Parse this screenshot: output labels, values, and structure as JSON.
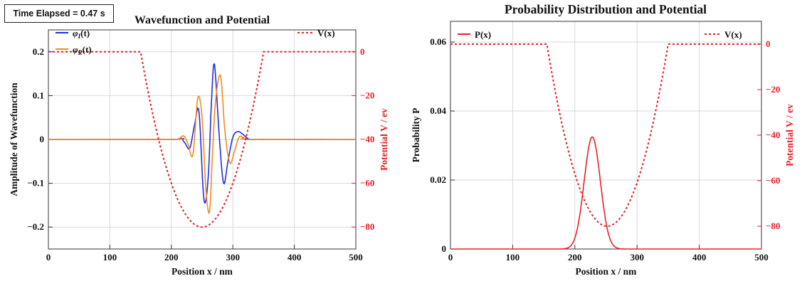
{
  "time_label": "Time Elapsed = 0.47 s",
  "colors": {
    "phi_i": "#1f2fe0",
    "phi_r": "#f28a21",
    "potential": "#e8202a",
    "probability": "#e8202a",
    "grid": "#d9d9d9"
  },
  "chart_data": [
    {
      "type": "line",
      "title": "Wavefunction and Potential",
      "xlabel": "Position x / nm",
      "ylabel": "Amplitude of Wavefunction",
      "ylabel_right": "Potential V / ev",
      "xlim": [
        0,
        500
      ],
      "ylim": [
        -0.25,
        0.25
      ],
      "ylim_right": [
        -90,
        10
      ],
      "xticks": [
        "0",
        "100",
        "200",
        "300",
        "400",
        "500"
      ],
      "yticks": [
        "0.2",
        "0.1",
        "0",
        "−0.1",
        "−0.2"
      ],
      "yticks_right": [
        "0",
        "−20",
        "−40",
        "−60",
        "−80"
      ],
      "grid": true,
      "legend_left": [
        {
          "name": "φI(t)",
          "base": "φ",
          "sub": "I",
          "arg": "(t)"
        },
        {
          "name": "φR(t)",
          "base": "φ",
          "sub": "R",
          "arg": "(t)"
        }
      ],
      "legend_right": [
        {
          "name": "V(x)"
        }
      ],
      "series": [
        {
          "name": "φI(t)",
          "x": [
            0,
            200,
            215,
            222,
            230,
            238,
            245,
            253,
            260,
            265,
            270,
            278,
            285,
            292,
            300,
            308,
            316,
            325,
            335,
            500
          ],
          "values": [
            0,
            0,
            0.002,
            -0.008,
            -0.02,
            0.035,
            0.062,
            -0.138,
            -0.085,
            0.08,
            0.172,
            0.005,
            -0.1,
            -0.05,
            0.005,
            0.018,
            0.012,
            0.002,
            0,
            0
          ]
        },
        {
          "name": "φR(t)",
          "x": [
            0,
            200,
            212,
            220,
            227,
            235,
            243,
            250,
            256,
            262,
            267,
            272,
            280,
            287,
            295,
            302,
            310,
            318,
            330,
            500
          ],
          "values": [
            0,
            0,
            0.002,
            0.008,
            -0.01,
            -0.035,
            0.095,
            0.05,
            -0.11,
            -0.165,
            -0.03,
            0.09,
            0.145,
            0.02,
            -0.053,
            -0.03,
            0.005,
            0.004,
            0,
            0
          ]
        },
        {
          "name": "V(x)",
          "axis": "right",
          "dashed": true,
          "x": [
            0,
            150,
            350,
            500
          ],
          "values": [
            0,
            0,
            0,
            0
          ],
          "well": {
            "from": 150,
            "to": 350,
            "center": 250,
            "depth": -80
          }
        }
      ]
    },
    {
      "type": "line",
      "title": "Probability Distribution and Potential",
      "xlabel": "Position x / nm",
      "ylabel": "Probability P",
      "ylabel_right": "Potential V / ev",
      "xlim": [
        0,
        500
      ],
      "ylim": [
        0,
        0.066
      ],
      "ylim_right": [
        -90,
        10
      ],
      "xticks": [
        "0",
        "100",
        "200",
        "300",
        "400",
        "500"
      ],
      "yticks": [
        "0.06",
        "0.04",
        "0.02",
        "0"
      ],
      "yticks_right": [
        "0",
        "−20",
        "−40",
        "−60",
        "−80"
      ],
      "grid": true,
      "legend_left": [
        {
          "name": "P(x)"
        }
      ],
      "legend_right": [
        {
          "name": "V(x)"
        }
      ],
      "series": [
        {
          "name": "P(x)",
          "gaussian": {
            "center": 228,
            "sigma": 13,
            "peak": 0.0325
          },
          "x": [
            0,
            500
          ],
          "values": [
            0,
            0
          ]
        },
        {
          "name": "V(x)",
          "axis": "right",
          "dashed": true,
          "x": [
            0,
            155,
            350,
            500
          ],
          "values": [
            0,
            0,
            0,
            0
          ],
          "well": {
            "from": 155,
            "to": 350,
            "center": 252,
            "depth": -80
          }
        }
      ]
    }
  ]
}
